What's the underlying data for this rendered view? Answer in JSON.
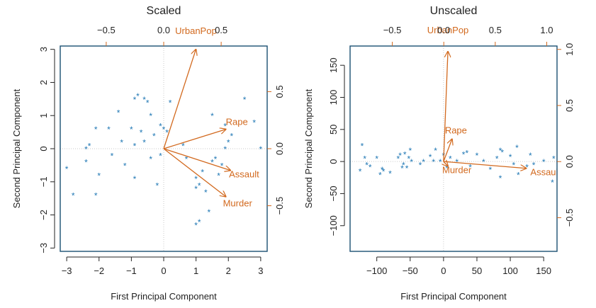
{
  "colors": {
    "points": "#1f77b4",
    "arrows": "#d2691e",
    "frame": "#1b4f72",
    "text": "#222222",
    "grid": "#c9c9c9"
  },
  "chart_data": [
    {
      "type": "scatter",
      "title": "Scaled",
      "xlabel": "First Principal Component",
      "ylabel": "Second Principal Component",
      "xlim": [
        -3.2,
        3.2
      ],
      "ylim": [
        -3.1,
        3.1
      ],
      "xticks": [
        -3,
        -2,
        -1,
        0,
        1,
        2,
        3
      ],
      "yticks": [
        -3,
        -2,
        -1,
        0,
        1,
        2,
        3
      ],
      "top_axis": {
        "lim": [
          -0.9,
          0.9
        ],
        "ticks": [
          -0.5,
          0.0,
          0.5
        ],
        "labels": [
          "−0.5",
          "0.0",
          "0.5"
        ]
      },
      "right_axis": {
        "lim": [
          -0.9,
          0.9
        ],
        "ticks": [
          -0.5,
          0.0,
          0.5
        ],
        "labels": [
          "−0.5",
          "0.0",
          "0.5"
        ]
      },
      "marker": "*",
      "points": [
        [
          -3.0,
          -0.6
        ],
        [
          -2.8,
          -1.4
        ],
        [
          -2.4,
          0.0
        ],
        [
          -2.3,
          0.1
        ],
        [
          -2.4,
          -0.4
        ],
        [
          -2.1,
          0.6
        ],
        [
          -2.0,
          -0.8
        ],
        [
          -2.1,
          -1.4
        ],
        [
          -1.7,
          0.6
        ],
        [
          -1.6,
          -0.2
        ],
        [
          -1.4,
          1.1
        ],
        [
          -1.3,
          0.2
        ],
        [
          -1.2,
          -0.5
        ],
        [
          -1.0,
          0.6
        ],
        [
          -0.9,
          0.1
        ],
        [
          -0.9,
          -0.9
        ],
        [
          -0.9,
          1.5
        ],
        [
          -0.8,
          1.6
        ],
        [
          -0.7,
          0.5
        ],
        [
          -0.6,
          0.2
        ],
        [
          -0.6,
          1.5
        ],
        [
          -0.5,
          1.4
        ],
        [
          -0.4,
          1.0
        ],
        [
          -0.4,
          -0.3
        ],
        [
          -0.3,
          0.4
        ],
        [
          -0.2,
          -1.1
        ],
        [
          -0.1,
          0.7
        ],
        [
          -0.1,
          -0.2
        ],
        [
          0.0,
          0.6
        ],
        [
          0.1,
          0.5
        ],
        [
          0.2,
          1.4
        ],
        [
          0.6,
          0.1
        ],
        [
          0.7,
          -0.3
        ],
        [
          1.0,
          -0.9
        ],
        [
          1.0,
          -1.2
        ],
        [
          1.1,
          -1.1
        ],
        [
          1.2,
          -0.7
        ],
        [
          1.3,
          -1.3
        ],
        [
          1.4,
          -1.9
        ],
        [
          1.5,
          -0.4
        ],
        [
          1.5,
          1.0
        ],
        [
          1.6,
          -0.3
        ],
        [
          1.7,
          -0.8
        ],
        [
          1.8,
          -0.5
        ],
        [
          1.9,
          0.7
        ],
        [
          1.9,
          0.0
        ],
        [
          2.0,
          0.2
        ],
        [
          2.1,
          0.4
        ],
        [
          1.0,
          -2.3
        ],
        [
          1.1,
          -2.2
        ],
        [
          2.5,
          1.5
        ],
        [
          2.8,
          0.8
        ],
        [
          3.0,
          0.0
        ]
      ],
      "loadings": [
        {
          "name": "UrbanPop",
          "x": 0.28,
          "y": 0.87
        },
        {
          "name": "Rape",
          "x": 0.54,
          "y": 0.17
        },
        {
          "name": "Assault",
          "x": 0.58,
          "y": -0.19
        },
        {
          "name": "Murder",
          "x": 0.54,
          "y": -0.42
        }
      ]
    },
    {
      "type": "scatter",
      "title": "Unscaled",
      "xlabel": "First Principal Component",
      "ylabel": "Second Principal Component",
      "xlim": [
        -140,
        170
      ],
      "ylim": [
        -140,
        180
      ],
      "xticks": [
        -100,
        -50,
        0,
        50,
        100,
        150
      ],
      "yticks": [
        -100,
        -50,
        0,
        50,
        100,
        150
      ],
      "top_axis": {
        "lim": [
          -0.91,
          1.1
        ],
        "ticks": [
          -0.5,
          0.0,
          0.5,
          1.0
        ],
        "labels": [
          "−0.5",
          "0.0",
          "0.5",
          "1.0"
        ]
      },
      "right_axis": {
        "lim": [
          -0.8,
          1.03
        ],
        "ticks": [
          -0.5,
          0.0,
          0.5,
          1.0
        ],
        "labels": [
          "−0.5",
          "0.0",
          "0.5",
          "1.0"
        ]
      },
      "marker": "*",
      "points": [
        [
          -125,
          -15
        ],
        [
          -122,
          25
        ],
        [
          -118,
          5
        ],
        [
          -115,
          -5
        ],
        [
          -110,
          -8
        ],
        [
          -100,
          5
        ],
        [
          -95,
          -20
        ],
        [
          -92,
          -12
        ],
        [
          -90,
          -15
        ],
        [
          -80,
          -18
        ],
        [
          -68,
          5
        ],
        [
          -65,
          10
        ],
        [
          -62,
          -10
        ],
        [
          -60,
          -5
        ],
        [
          -58,
          12
        ],
        [
          -55,
          -10
        ],
        [
          -52,
          5
        ],
        [
          -50,
          18
        ],
        [
          -48,
          0
        ],
        [
          -35,
          -5
        ],
        [
          -30,
          0
        ],
        [
          -20,
          8
        ],
        [
          -15,
          0
        ],
        [
          -12,
          18
        ],
        [
          -5,
          0
        ],
        [
          0,
          10
        ],
        [
          5,
          -10
        ],
        [
          10,
          5
        ],
        [
          20,
          0
        ],
        [
          30,
          12
        ],
        [
          35,
          14
        ],
        [
          40,
          -8
        ],
        [
          50,
          10
        ],
        [
          60,
          0
        ],
        [
          70,
          -12
        ],
        [
          80,
          5
        ],
        [
          85,
          -25
        ],
        [
          88,
          15
        ],
        [
          85,
          18
        ],
        [
          100,
          8
        ],
        [
          105,
          -5
        ],
        [
          110,
          22
        ],
        [
          112,
          -20
        ],
        [
          125,
          -8
        ],
        [
          130,
          10
        ],
        [
          135,
          -5
        ],
        [
          150,
          0
        ],
        [
          165,
          5
        ],
        [
          163,
          -32
        ]
      ],
      "loadings": [
        {
          "name": "UrbanPop",
          "x": 0.04,
          "y": 0.98
        },
        {
          "name": "Rape",
          "x": 0.08,
          "y": 0.2
        },
        {
          "name": "Murder",
          "x": 0.04,
          "y": -0.04
        },
        {
          "name": "Assault",
          "x": 0.8,
          "y": -0.06
        }
      ]
    }
  ]
}
